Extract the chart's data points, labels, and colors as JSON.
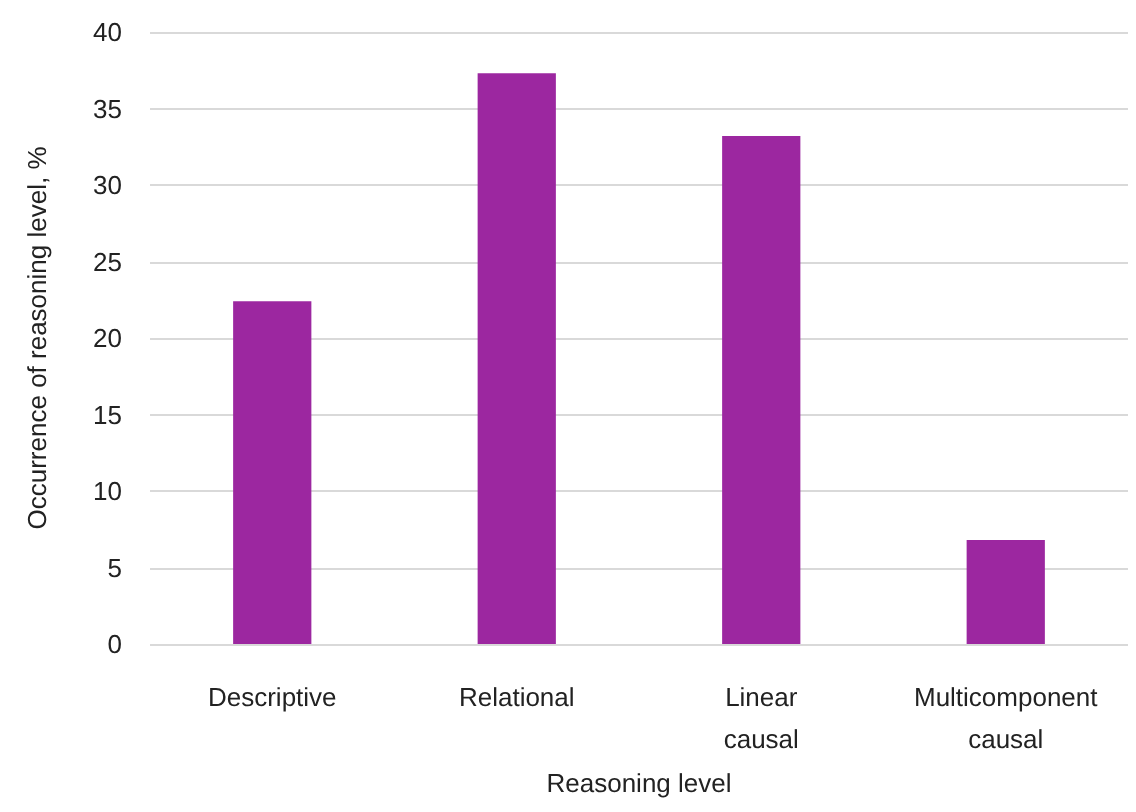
{
  "chart_data": {
    "type": "bar",
    "xlabel": "Reasoning level",
    "ylabel": "Occurrence of reasoning level, %",
    "categories": [
      "Descriptive",
      "Relational",
      "Linear\ncausal",
      "Multicomponent\ncausal"
    ],
    "values": [
      22.4,
      37.3,
      33.2,
      6.8
    ],
    "color": "#9c27a0",
    "ylim": [
      0,
      40
    ],
    "yticks": [
      0,
      5,
      10,
      15,
      20,
      25,
      30,
      35,
      40
    ],
    "grid": "y"
  }
}
